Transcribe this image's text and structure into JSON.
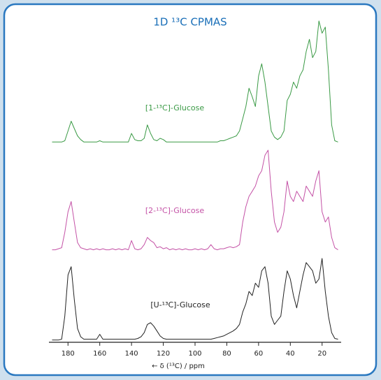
{
  "chart_data": {
    "type": "line",
    "title": "1D ¹³C CPMAS",
    "x_label": "← δ (¹³C) / ppm",
    "x": [
      190,
      188,
      186,
      184,
      182,
      180,
      178,
      176,
      174,
      172,
      170,
      168,
      166,
      164,
      162,
      160,
      158,
      156,
      154,
      152,
      150,
      148,
      146,
      144,
      142,
      140,
      138,
      136,
      134,
      132,
      130,
      128,
      126,
      124,
      122,
      120,
      118,
      116,
      114,
      112,
      110,
      108,
      106,
      104,
      102,
      100,
      98,
      96,
      94,
      92,
      90,
      88,
      86,
      84,
      82,
      80,
      78,
      76,
      74,
      72,
      70,
      68,
      66,
      64,
      62,
      60,
      58,
      56,
      54,
      52,
      50,
      48,
      46,
      44,
      42,
      40,
      38,
      36,
      34,
      32,
      30,
      28,
      26,
      24,
      22,
      20,
      18,
      16,
      14,
      12,
      10
    ],
    "xlim": [
      192,
      8
    ],
    "xticks": [
      180,
      160,
      140,
      120,
      100,
      80,
      60,
      40,
      20
    ],
    "ylim": [
      0,
      100
    ],
    "series": [
      {
        "name": "[1-¹³C]-Glucose",
        "color": "#3a9a45",
        "values": [
          1,
          1,
          1,
          1,
          2,
          10,
          18,
          12,
          6,
          3,
          1,
          1,
          1,
          1,
          1,
          2,
          1,
          1,
          1,
          1,
          1,
          1,
          1,
          1,
          1,
          8,
          3,
          2,
          2,
          4,
          15,
          8,
          3,
          2,
          4,
          3,
          1,
          1,
          1,
          1,
          1,
          1,
          1,
          1,
          1,
          1,
          1,
          1,
          1,
          1,
          1,
          1,
          1,
          2,
          2,
          3,
          4,
          5,
          6,
          10,
          20,
          30,
          45,
          38,
          30,
          55,
          65,
          50,
          30,
          10,
          5,
          3,
          5,
          10,
          35,
          40,
          50,
          45,
          55,
          60,
          75,
          85,
          70,
          75,
          100,
          90,
          95,
          60,
          15,
          2,
          1
        ]
      },
      {
        "name": "[2-¹³C]-Glucose",
        "color": "#c452a6",
        "values": [
          3,
          3,
          4,
          5,
          20,
          40,
          50,
          30,
          10,
          5,
          4,
          3,
          4,
          3,
          4,
          3,
          4,
          3,
          3,
          4,
          3,
          4,
          3,
          4,
          3,
          12,
          4,
          3,
          4,
          8,
          15,
          12,
          10,
          5,
          6,
          4,
          5,
          3,
          4,
          3,
          4,
          3,
          4,
          3,
          3,
          4,
          3,
          4,
          3,
          4,
          8,
          4,
          3,
          4,
          4,
          5,
          6,
          5,
          6,
          8,
          30,
          45,
          55,
          60,
          65,
          75,
          80,
          95,
          100,
          60,
          30,
          20,
          25,
          40,
          70,
          55,
          50,
          60,
          55,
          50,
          65,
          60,
          55,
          70,
          80,
          40,
          30,
          35,
          15,
          5,
          3
        ]
      },
      {
        "name": "[U-¹³C]-Glucose",
        "color": "#222222",
        "values": [
          1,
          1,
          1,
          2,
          30,
          80,
          90,
          50,
          15,
          5,
          2,
          2,
          2,
          2,
          2,
          8,
          2,
          2,
          2,
          2,
          2,
          2,
          2,
          2,
          2,
          2,
          2,
          3,
          5,
          10,
          20,
          22,
          18,
          12,
          6,
          3,
          2,
          2,
          2,
          2,
          2,
          2,
          2,
          2,
          2,
          2,
          2,
          2,
          2,
          2,
          2,
          3,
          4,
          5,
          6,
          8,
          10,
          12,
          15,
          20,
          35,
          45,
          60,
          55,
          70,
          65,
          85,
          90,
          70,
          30,
          20,
          25,
          30,
          60,
          85,
          75,
          55,
          40,
          60,
          80,
          95,
          90,
          85,
          70,
          75,
          100,
          60,
          30,
          10,
          3,
          2
        ]
      }
    ]
  }
}
